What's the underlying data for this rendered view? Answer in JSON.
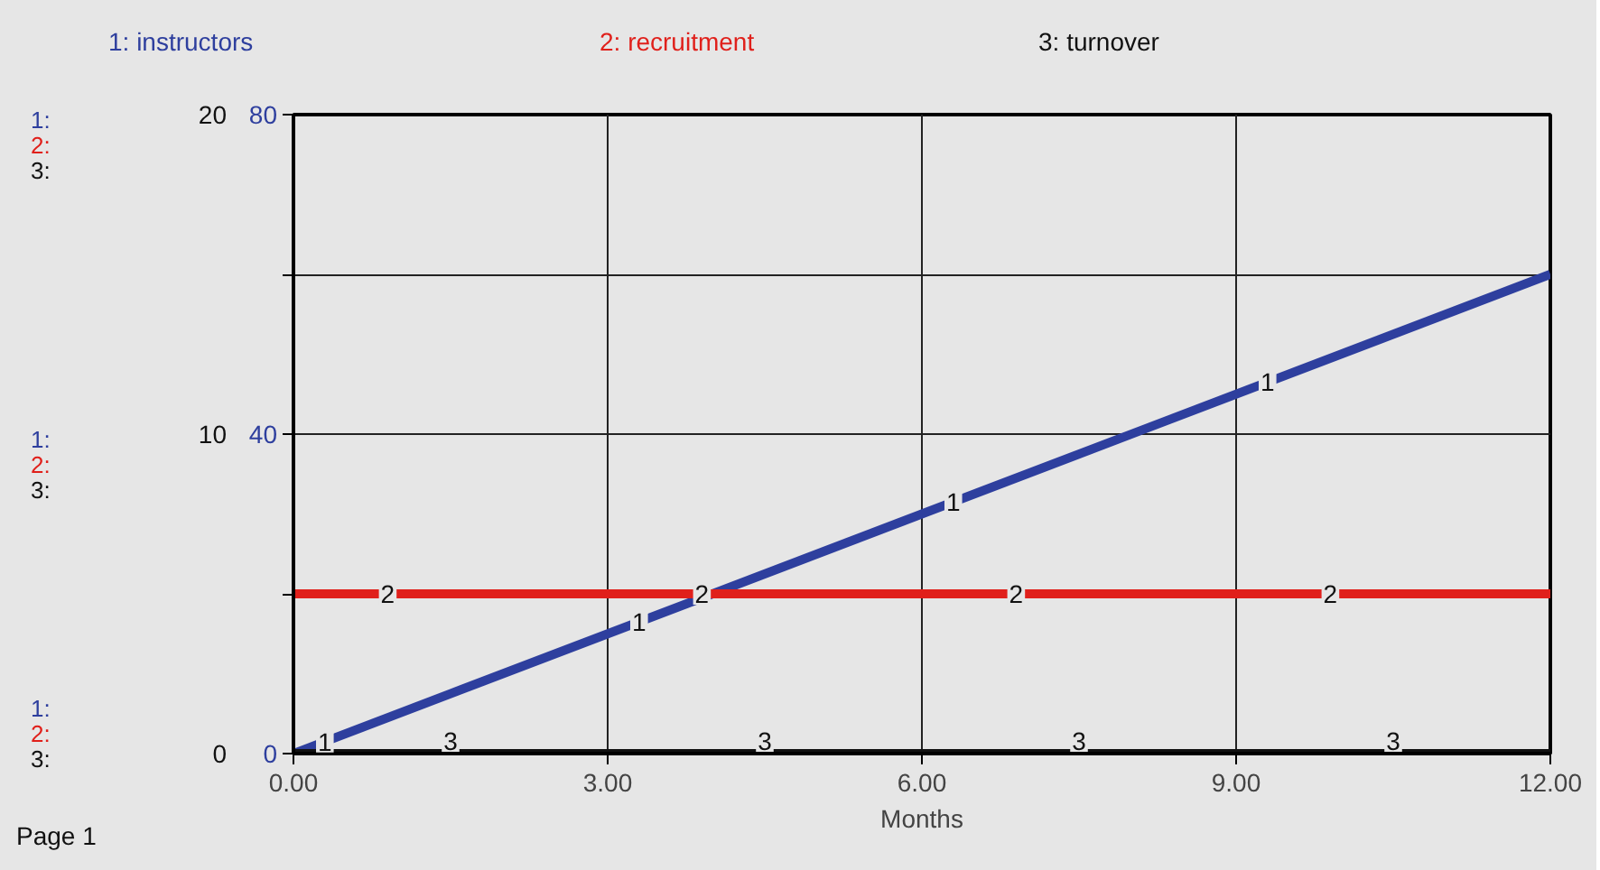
{
  "chart_data": {
    "type": "line",
    "xlabel": "Months",
    "xlim": [
      0,
      12
    ],
    "xticks": [
      {
        "value": 0,
        "label": "0.00"
      },
      {
        "value": 3,
        "label": "3.00"
      },
      {
        "value": 6,
        "label": "6.00"
      },
      {
        "value": 9,
        "label": "9.00"
      },
      {
        "value": 12,
        "label": "12.00"
      }
    ],
    "ylim": [
      0,
      80
    ],
    "yticks": [
      0,
      {
        "value": 20,
        "label": null
      },
      40,
      {
        "value": 60,
        "label": null
      },
      80
    ],
    "y2lim": [
      0,
      20
    ],
    "y2ticks": [
      0,
      10,
      20
    ],
    "grid": true,
    "x": [
      0,
      12
    ],
    "series": [
      {
        "name": "1: instructors",
        "color": "#2e3f9e",
        "values": [
          0,
          60
        ]
      },
      {
        "name": "2: recruitment",
        "color": "#e0201b",
        "axis": "y2",
        "values": [
          5,
          5
        ]
      },
      {
        "name": "3: turnover",
        "color": "#111111",
        "axis": "y2",
        "values": [
          0,
          0
        ]
      }
    ],
    "annotations": [
      "Page 1",
      "1:",
      "2:",
      "3:",
      "1:",
      "2:",
      "3:",
      "1:",
      "2:",
      "3:",
      {
        "text": "1",
        "x": 0.3,
        "y": 1.5
      },
      {
        "text": "1",
        "x": 3.3,
        "y": 16.5
      },
      {
        "text": "1",
        "x": 6.3,
        "y": 31.5
      },
      {
        "text": "1",
        "x": 9.3,
        "y": 46.5
      },
      {
        "text": "2",
        "x": 0.9,
        "y": 20
      },
      {
        "text": "2",
        "x": 3.9,
        "y": 20
      },
      {
        "text": "2",
        "x": 6.9,
        "y": 20
      },
      {
        "text": "2",
        "x": 9.9,
        "y": 20
      },
      {
        "text": "3",
        "x": 1.5,
        "y": 0
      },
      {
        "text": "3",
        "x": 4.5,
        "y": 0
      },
      {
        "text": "3",
        "x": 7.5,
        "y": 0
      },
      {
        "text": "3",
        "x": 10.5,
        "y": 0
      }
    ]
  }
}
